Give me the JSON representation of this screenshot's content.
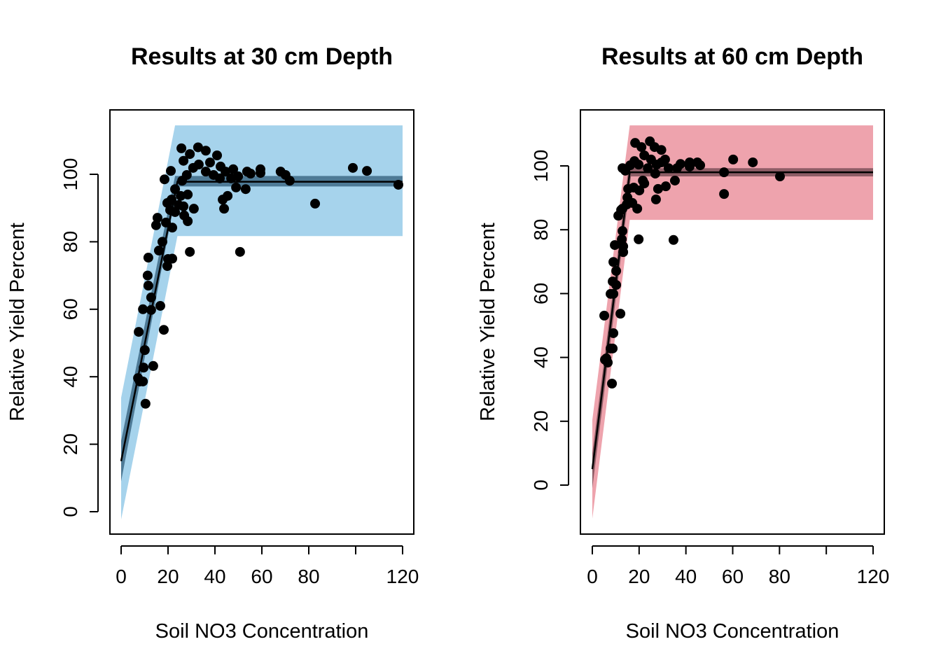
{
  "chart_data": [
    {
      "type": "scatter",
      "title": "Results at 30 cm Depth",
      "xlabel": "Soil NO3 Concentration",
      "ylabel": "Relative Yield Percent",
      "xlim": [
        0,
        120
      ],
      "ylim": [
        -4,
        118
      ],
      "xticks": [
        0,
        20,
        40,
        60,
        80,
        100,
        120
      ],
      "xtick_labels": [
        "0",
        "20",
        "40",
        "60",
        "80",
        "",
        "120"
      ],
      "yticks": [
        0,
        20,
        40,
        60,
        80,
        100
      ],
      "ytick_labels": [
        "0",
        "20",
        "40",
        "60",
        "80",
        "100"
      ],
      "grid": false,
      "colors": {
        "band": "#A6D3EC",
        "confidence": "#4E7A96",
        "fit": "#000000",
        "points": "#000000"
      },
      "fit_line": [
        [
          0,
          15
        ],
        [
          24,
          97.8
        ],
        [
          120,
          97.8
        ]
      ],
      "confidence_band": {
        "lower": [
          [
            0,
            9
          ],
          [
            24,
            96.4
          ],
          [
            120,
            96.4
          ]
        ],
        "upper": [
          [
            0,
            21
          ],
          [
            23,
            99.5
          ],
          [
            120,
            99.5
          ]
        ]
      },
      "prediction_band": {
        "lower": [
          [
            0,
            -2.3
          ],
          [
            24,
            81.7
          ],
          [
            120,
            81.7
          ]
        ],
        "upper": [
          [
            0,
            33.8
          ],
          [
            23,
            114.5
          ],
          [
            120,
            114.5
          ]
        ]
      },
      "points": [
        [
          10.4,
          32
        ],
        [
          8,
          38.6
        ],
        [
          7.2,
          39.6
        ],
        [
          9.3,
          38.6
        ],
        [
          9.6,
          42.7
        ],
        [
          13.7,
          43.2
        ],
        [
          10.1,
          47.9
        ],
        [
          7.5,
          53.3
        ],
        [
          18.2,
          53.9
        ],
        [
          9.3,
          60
        ],
        [
          12.8,
          59.8
        ],
        [
          16.7,
          61
        ],
        [
          12.8,
          63.5
        ],
        [
          11.6,
          67
        ],
        [
          11.3,
          70
        ],
        [
          11.6,
          75.3
        ],
        [
          20,
          74.9
        ],
        [
          16.1,
          77.4
        ],
        [
          17.6,
          80
        ],
        [
          21.8,
          75
        ],
        [
          19.7,
          72.8
        ],
        [
          14.9,
          84.9
        ],
        [
          15.5,
          87.1
        ],
        [
          19.1,
          85.7
        ],
        [
          21.8,
          84.2
        ],
        [
          18.5,
          98.5
        ],
        [
          21.2,
          101
        ],
        [
          29.3,
          77
        ],
        [
          50.7,
          77
        ],
        [
          19.7,
          91.5
        ],
        [
          21.5,
          92.5
        ],
        [
          20.9,
          89.4
        ],
        [
          23,
          88.8
        ],
        [
          24.5,
          90.9
        ],
        [
          26.6,
          90.5
        ],
        [
          28.4,
          86.1
        ],
        [
          26.9,
          87.8
        ],
        [
          31,
          89.8
        ],
        [
          25.4,
          93.6
        ],
        [
          28.4,
          94
        ],
        [
          23,
          95.6
        ],
        [
          26,
          98.1
        ],
        [
          28,
          99.8
        ],
        [
          30.7,
          101.9
        ],
        [
          25.7,
          107.7
        ],
        [
          26.6,
          104
        ],
        [
          29.3,
          106
        ],
        [
          32.8,
          108
        ],
        [
          36.1,
          107
        ],
        [
          33.1,
          102.9
        ],
        [
          36.1,
          100.8
        ],
        [
          37.9,
          103.5
        ],
        [
          40.9,
          105.6
        ],
        [
          42.4,
          102.3
        ],
        [
          39.4,
          99.8
        ],
        [
          44.5,
          100.8
        ],
        [
          47.8,
          101.5
        ],
        [
          49.9,
          99.4
        ],
        [
          53.7,
          100.8
        ],
        [
          55.2,
          100.2
        ],
        [
          59.4,
          101.5
        ],
        [
          42.1,
          98.8
        ],
        [
          46.9,
          98.8
        ],
        [
          43.3,
          92.5
        ],
        [
          45.4,
          93.6
        ],
        [
          43.9,
          89.8
        ],
        [
          49,
          96.1
        ],
        [
          53.1,
          95.6
        ],
        [
          59.4,
          100.4
        ],
        [
          68,
          100.8
        ],
        [
          70.1,
          99.8
        ],
        [
          71.9,
          98.1
        ],
        [
          82.7,
          91.3
        ],
        [
          98.8,
          101.9
        ],
        [
          104.8,
          101
        ],
        [
          118.2,
          96.9
        ]
      ]
    },
    {
      "type": "scatter",
      "title": "Results at 60 cm Depth",
      "xlabel": "Soil NO3 Concentration",
      "ylabel": "Relative Yield Percent",
      "xlim": [
        0,
        120
      ],
      "ylim": [
        -15,
        118
      ],
      "xticks": [
        0,
        20,
        40,
        60,
        80,
        100,
        120
      ],
      "xtick_labels": [
        "0",
        "20",
        "40",
        "60",
        "80",
        "",
        "120"
      ],
      "yticks": [
        0,
        20,
        40,
        60,
        80,
        100
      ],
      "ytick_labels": [
        "0",
        "20",
        "40",
        "60",
        "80",
        "100"
      ],
      "grid": false,
      "colors": {
        "band": "#EEA3AD",
        "confidence": "#8E5D66",
        "fit": "#000000",
        "points": "#000000"
      },
      "fit_line": [
        [
          0,
          5
        ],
        [
          16,
          98
        ],
        [
          120,
          98
        ]
      ],
      "confidence_band": {
        "lower": [
          [
            0,
            -1
          ],
          [
            16.5,
            96.7
          ],
          [
            120,
            96.7
          ]
        ],
        "upper": [
          [
            0,
            10
          ],
          [
            15.5,
            99.3
          ],
          [
            120,
            99.3
          ]
        ]
      },
      "prediction_band": {
        "lower": [
          [
            0,
            -10.5
          ],
          [
            16,
            83.1
          ],
          [
            120,
            83.1
          ]
        ],
        "upper": [
          [
            0,
            20.4
          ],
          [
            16,
            112.7
          ],
          [
            120,
            112.7
          ]
        ]
      },
      "points": [
        [
          8.4,
          31.8
        ],
        [
          6.6,
          38.4
        ],
        [
          5.4,
          39.3
        ],
        [
          6,
          39.7
        ],
        [
          8.7,
          42.8
        ],
        [
          7.8,
          42.8
        ],
        [
          9,
          47.6
        ],
        [
          5.1,
          53.1
        ],
        [
          12,
          53.7
        ],
        [
          7.8,
          59.9
        ],
        [
          9,
          59.9
        ],
        [
          10.2,
          62.7
        ],
        [
          8.7,
          63.8
        ],
        [
          10.2,
          67.1
        ],
        [
          9,
          69.9
        ],
        [
          9.6,
          75.2
        ],
        [
          13.2,
          73
        ],
        [
          13.2,
          74.8
        ],
        [
          12.6,
          77
        ],
        [
          12.9,
          79.6
        ],
        [
          11.1,
          84.4
        ],
        [
          12.3,
          86.2
        ],
        [
          14.7,
          87.9
        ],
        [
          12.9,
          86.6
        ],
        [
          19.8,
          77
        ],
        [
          34.7,
          76.8
        ],
        [
          15,
          90.1
        ],
        [
          17.1,
          88.4
        ],
        [
          19.2,
          86.6
        ],
        [
          15.3,
          92.8
        ],
        [
          17.7,
          93.2
        ],
        [
          20.1,
          92.3
        ],
        [
          14.1,
          98.5
        ],
        [
          12.9,
          99.3
        ],
        [
          16.2,
          100.2
        ],
        [
          18,
          101.5
        ],
        [
          18.3,
          107.2
        ],
        [
          21,
          105.9
        ],
        [
          24.6,
          107.7
        ],
        [
          26.6,
          105.9
        ],
        [
          29.5,
          105
        ],
        [
          25.1,
          102
        ],
        [
          22.2,
          103.3
        ],
        [
          19.8,
          100.4
        ],
        [
          27.5,
          100.4
        ],
        [
          29.6,
          101.1
        ],
        [
          31.1,
          102
        ],
        [
          26.9,
          97.6
        ],
        [
          23.7,
          99.3
        ],
        [
          22.2,
          94.5
        ],
        [
          21.6,
          95.4
        ],
        [
          28.1,
          92.8
        ],
        [
          31.4,
          93.6
        ],
        [
          27.2,
          89.5
        ],
        [
          35.3,
          95.4
        ],
        [
          36.2,
          99.3
        ],
        [
          37.7,
          100.6
        ],
        [
          41.6,
          99.8
        ],
        [
          44.9,
          101.1
        ],
        [
          46.1,
          100.2
        ],
        [
          56.3,
          98
        ],
        [
          56.3,
          91.2
        ],
        [
          60.2,
          102
        ],
        [
          68.6,
          101.1
        ],
        [
          80.2,
          96.7
        ],
        [
          32.6,
          99.3
        ],
        [
          41.6,
          101.1
        ]
      ]
    }
  ]
}
